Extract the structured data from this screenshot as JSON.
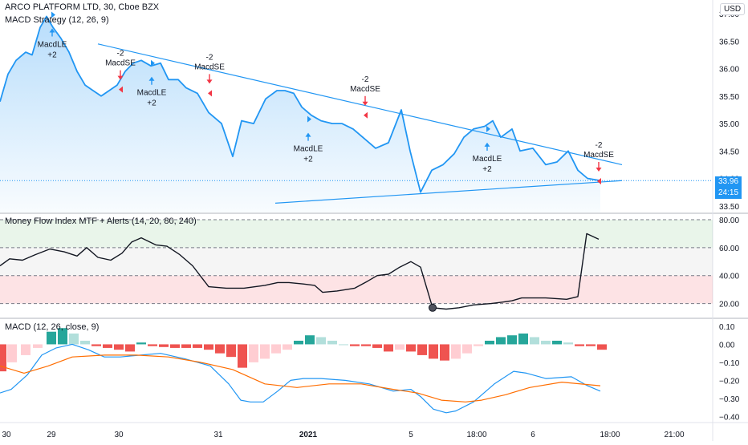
{
  "header": {
    "symbol": "ARCO PLATFORM LTD, 30, Cboe BZX",
    "strategy": "MACD Strategy (12, 26, 9)",
    "mfi_title": "Money Flow Index MTF + Alerts (14, 20, 80, 240)",
    "macd_title": "MACD (12, 26, close, 9)",
    "currency": "USD"
  },
  "price": {
    "last": "33.96",
    "countdown": "24:15"
  },
  "colors": {
    "line": "#2196f3",
    "sell": "#f23645",
    "buy": "#2196f3",
    "mfi_line": "#131722",
    "hist_pos_strong": "#26a69a",
    "hist_pos_weak": "#b2dfdb",
    "hist_neg_strong": "#ef5350",
    "hist_neg_weak": "#ffcdd2",
    "macd_line": "#2196f3",
    "signal_line": "#ff6d00",
    "axis_text": "#131722"
  },
  "chart_data": [
    {
      "type": "line",
      "name": "price",
      "ylim": [
        33.38,
        37.25
      ],
      "yticks": [
        "33.50",
        "34.00",
        "34.50",
        "35.00",
        "35.50",
        "36.00",
        "36.50",
        "37.00"
      ],
      "xticks": [
        "30",
        "29",
        "30",
        "31",
        "2021",
        "5",
        "18:00",
        "6",
        "18:00",
        "21:00"
      ],
      "x": [
        0,
        10,
        20,
        32,
        40,
        50,
        58,
        66,
        76,
        86,
        96,
        106,
        116,
        126,
        136,
        146,
        156,
        166,
        176,
        188,
        200,
        210,
        222,
        232,
        246,
        260,
        276,
        290,
        301,
        316,
        331,
        345,
        355,
        366,
        376,
        388,
        400,
        414,
        426,
        440,
        452,
        468,
        484,
        500,
        511,
        524,
        538,
        552,
        566,
        578,
        590,
        604,
        614,
        624,
        638,
        648,
        664,
        680,
        694,
        708,
        720,
        732,
        748
      ],
      "values": [
        35.4,
        35.9,
        36.15,
        36.3,
        36.25,
        36.75,
        36.95,
        36.75,
        36.55,
        36.3,
        35.95,
        35.7,
        35.6,
        35.5,
        35.6,
        35.7,
        35.95,
        36.1,
        36.15,
        36.05,
        36.1,
        35.8,
        35.8,
        35.65,
        35.55,
        35.2,
        35.0,
        34.4,
        35.05,
        35.0,
        35.45,
        35.6,
        35.6,
        35.55,
        35.3,
        35.15,
        35.05,
        35.0,
        35.0,
        34.9,
        34.75,
        34.55,
        34.65,
        35.25,
        34.5,
        33.75,
        34.15,
        34.25,
        34.45,
        34.75,
        34.9,
        34.95,
        35.05,
        34.75,
        34.9,
        34.5,
        34.55,
        34.25,
        34.3,
        34.5,
        34.15,
        34.0,
        33.96
      ],
      "trendlines": [
        {
          "x": [
            122,
            775
          ],
          "values": [
            36.45,
            34.25
          ]
        },
        {
          "x": [
            343,
            775
          ],
          "values": [
            33.55,
            33.96
          ]
        }
      ],
      "signals": [
        {
          "kind": "buy",
          "label": "MacdLE",
          "qty": "+2",
          "x": 65,
          "price": 36.98
        },
        {
          "kind": "sell",
          "label": "MacdSE",
          "qty": "-2",
          "x": 150,
          "price": 35.62
        },
        {
          "kind": "buy",
          "label": "MacdLE",
          "qty": "+2",
          "x": 189,
          "price": 36.1
        },
        {
          "kind": "sell",
          "label": "MacdSE",
          "qty": "-2",
          "x": 261,
          "price": 35.55
        },
        {
          "kind": "buy",
          "label": "MacdLE",
          "qty": "+2",
          "x": 384,
          "price": 35.08
        },
        {
          "kind": "sell",
          "label": "MacdSE",
          "qty": "-2",
          "x": 455,
          "price": 35.15
        },
        {
          "kind": "buy",
          "label": "MacdLE",
          "qty": "+2",
          "x": 607,
          "price": 34.9
        },
        {
          "kind": "sell",
          "label": "MacdSE",
          "qty": "-2",
          "x": 746,
          "price": 33.95
        }
      ]
    },
    {
      "type": "line",
      "name": "money-flow-index",
      "ylim": [
        10,
        84
      ],
      "yticks": [
        "20.00",
        "40.00",
        "60.00",
        "80.00"
      ],
      "bands": [
        20,
        40,
        60,
        80
      ],
      "x": [
        0,
        12,
        28,
        44,
        62,
        80,
        96,
        108,
        122,
        138,
        152,
        164,
        176,
        194,
        208,
        224,
        240,
        260,
        282,
        304,
        330,
        346,
        360,
        378,
        392,
        402,
        420,
        442,
        458,
        470,
        484,
        498,
        512,
        524,
        539,
        556,
        572,
        590,
        612,
        626,
        638,
        650,
        680,
        706,
        720,
        731,
        746
      ],
      "values": [
        47,
        52,
        51,
        55,
        59,
        57,
        54,
        60,
        53,
        51,
        56,
        64,
        67,
        62,
        61,
        55,
        47,
        32,
        31,
        31,
        33,
        35,
        35,
        34,
        33,
        28,
        29,
        31,
        36,
        40,
        41,
        46,
        50,
        46,
        17,
        16,
        17,
        19,
        20,
        21,
        22,
        24,
        24,
        23,
        25,
        70,
        66
      ],
      "highlight_point": {
        "x": 539,
        "value": 17
      }
    },
    {
      "type": "bar",
      "name": "macd-histogram",
      "ylim": [
        -0.43,
        0.14
      ],
      "yticks": [
        "0.10",
        "0.00",
        "−0.10",
        "−0.20",
        "−0.30",
        "−0.40"
      ],
      "bar_width": 12,
      "x": [
        2,
        15,
        32,
        47,
        64,
        78,
        92,
        106,
        120,
        134,
        148,
        162,
        176,
        190,
        204,
        218,
        232,
        246,
        260,
        274,
        288,
        302,
        316,
        330,
        344,
        358,
        372,
        386,
        400,
        414,
        428,
        442,
        456,
        470,
        484,
        498,
        512,
        526,
        540,
        554,
        568,
        582,
        596,
        610,
        624,
        638,
        652,
        666,
        680,
        694,
        708,
        722,
        736,
        750
      ],
      "values": [
        -0.15,
        -0.1,
        -0.06,
        -0.02,
        0.07,
        0.09,
        0.06,
        0.02,
        -0.01,
        -0.02,
        -0.03,
        -0.04,
        0.01,
        -0.01,
        -0.015,
        -0.02,
        -0.02,
        -0.02,
        -0.03,
        -0.05,
        -0.07,
        -0.13,
        -0.1,
        -0.08,
        -0.05,
        -0.03,
        0.02,
        0.05,
        0.04,
        0.02,
        0.0,
        -0.01,
        -0.01,
        -0.02,
        -0.04,
        -0.03,
        -0.04,
        -0.06,
        -0.08,
        -0.09,
        -0.08,
        -0.05,
        -0.01,
        0.02,
        0.04,
        0.05,
        0.06,
        0.04,
        0.02,
        0.02,
        0.01,
        -0.01,
        -0.01,
        -0.03
      ],
      "series_lines": [
        {
          "name": "MACD",
          "x": [
            0,
            14,
            34,
            52,
            70,
            90,
            110,
            130,
            150,
            175,
            200,
            230,
            262,
            285,
            300,
            312,
            328,
            346,
            362,
            378,
            400,
            430,
            460,
            490,
            512,
            524,
            540,
            556,
            568,
            590,
            616,
            640,
            656,
            680,
            712,
            732,
            748
          ],
          "values": [
            -0.27,
            -0.25,
            -0.17,
            -0.06,
            -0.02,
            0.0,
            -0.03,
            -0.07,
            -0.07,
            -0.06,
            -0.05,
            -0.08,
            -0.12,
            -0.22,
            -0.31,
            -0.32,
            -0.32,
            -0.26,
            -0.2,
            -0.19,
            -0.19,
            -0.2,
            -0.22,
            -0.26,
            -0.25,
            -0.29,
            -0.36,
            -0.38,
            -0.37,
            -0.32,
            -0.22,
            -0.15,
            -0.16,
            -0.19,
            -0.18,
            -0.23,
            -0.26
          ]
        },
        {
          "name": "Signal",
          "x": [
            0,
            30,
            60,
            90,
            130,
            170,
            210,
            250,
            290,
            330,
            370,
            410,
            450,
            490,
            520,
            550,
            580,
            600,
            630,
            660,
            700,
            748
          ],
          "values": [
            -0.12,
            -0.16,
            -0.12,
            -0.07,
            -0.06,
            -0.06,
            -0.07,
            -0.1,
            -0.14,
            -0.22,
            -0.24,
            -0.22,
            -0.22,
            -0.25,
            -0.27,
            -0.31,
            -0.32,
            -0.31,
            -0.28,
            -0.24,
            -0.21,
            -0.23
          ]
        }
      ]
    }
  ]
}
